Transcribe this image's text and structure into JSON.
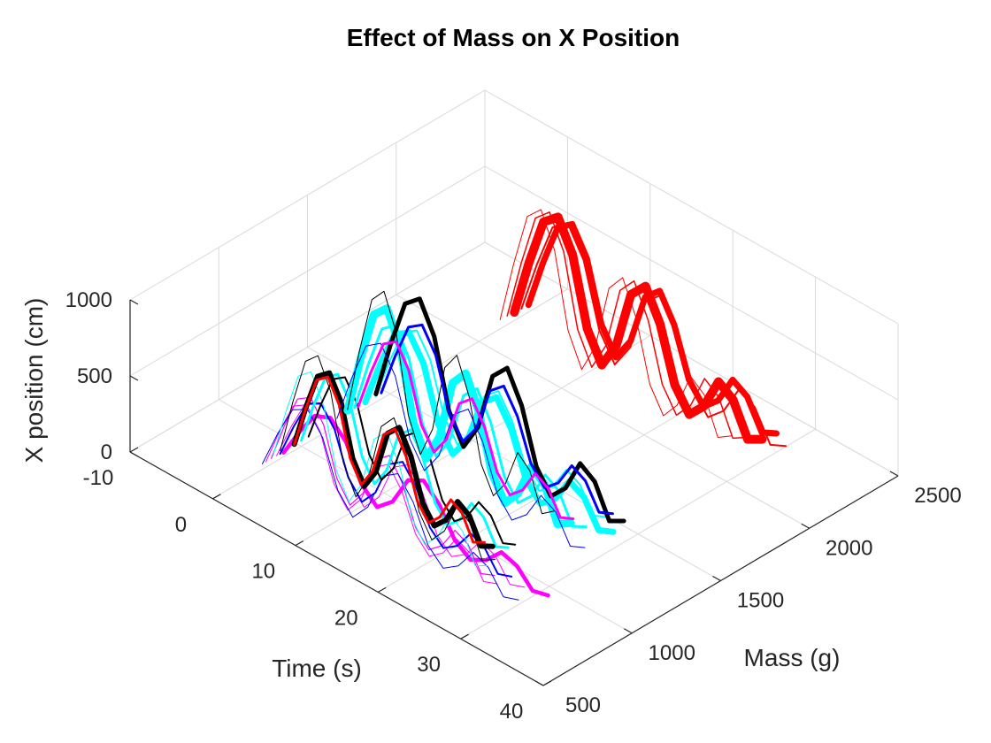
{
  "chart_data": {
    "type": "line",
    "projection": "3d",
    "title": "Effect of Mass  on  X Position",
    "xlabel": "Time (s)",
    "ylabel": "Mass (g)",
    "zlabel": "X position (cm)",
    "xlim": [
      -10,
      40
    ],
    "ylim": [
      500,
      2500
    ],
    "zlim": [
      0,
      1000
    ],
    "x_ticks": [
      "-10",
      "0",
      "10",
      "20",
      "30",
      "40"
    ],
    "y_ticks": [
      "500",
      "1000",
      "1500",
      "2000",
      "2500"
    ],
    "z_ticks": [
      "0",
      "500",
      "1000"
    ],
    "grid": true,
    "wave_shape": {
      "x": [
        0,
        2,
        4,
        6,
        8,
        10,
        12,
        14,
        16,
        18,
        20,
        22,
        24,
        26,
        28,
        30,
        32,
        34
      ],
      "z": [
        50,
        400,
        700,
        780,
        600,
        200,
        30,
        200,
        560,
        660,
        480,
        160,
        30,
        130,
        330,
        270,
        80,
        130
      ]
    },
    "series": [
      {
        "color": "#ff00ff",
        "mass": 800,
        "duration": 28,
        "width": 1.0,
        "amp": 0.72
      },
      {
        "color": "#ff00ff",
        "mass": 830,
        "duration": 27,
        "width": 1.2,
        "amp": 0.75
      },
      {
        "color": "#ff00ff",
        "mass": 860,
        "duration": 30,
        "width": 1.0,
        "amp": 0.7
      },
      {
        "color": "#ff00ff",
        "mass": 900,
        "duration": 32,
        "width": 4.5,
        "amp": 0.55
      },
      {
        "color": "#0000ff",
        "mass": 780,
        "duration": 31,
        "width": 1.0,
        "amp": 0.72
      },
      {
        "color": "#0000ff",
        "mass": 880,
        "duration": 28,
        "width": 2.0,
        "amp": 0.66
      },
      {
        "color": "#00ffff",
        "mass": 840,
        "duration": 26,
        "width": 1.0,
        "amp": 0.95
      },
      {
        "color": "#00ffff",
        "mass": 1000,
        "duration": 25,
        "width": 3.0,
        "amp": 0.78
      },
      {
        "color": "#000000",
        "mass": 880,
        "duration": 26,
        "width": 1.0,
        "amp": 1.05
      },
      {
        "color": "#000000",
        "mass": 960,
        "duration": 24,
        "width": 6.0,
        "amp": 0.82
      },
      {
        "color": "#000000",
        "mass": 1040,
        "duration": 25,
        "width": 2.0,
        "amp": 0.72
      },
      {
        "color": "#ff0000",
        "mass": 960,
        "duration": 23,
        "width": 3.0,
        "amp": 0.78
      },
      {
        "color": "#00ffff",
        "mass": 1260,
        "duration": 27,
        "width": 9.0,
        "amp": 1.12
      },
      {
        "color": "#00ffff",
        "mass": 1300,
        "duration": 28,
        "width": 3.0,
        "amp": 0.95
      },
      {
        "color": "#00ffff",
        "mass": 1360,
        "duration": 30,
        "width": 7.0,
        "amp": 0.85
      },
      {
        "color": "#00ffff",
        "mass": 1420,
        "duration": 28,
        "width": 2.0,
        "amp": 0.8
      },
      {
        "color": "#000000",
        "mass": 1260,
        "duration": 25,
        "width": 1.0,
        "amp": 1.25
      },
      {
        "color": "#000000",
        "mass": 1420,
        "duration": 30,
        "width": 5.0,
        "amp": 1.08
      },
      {
        "color": "#0000ff",
        "mass": 1200,
        "duration": 30,
        "width": 1.0,
        "amp": 0.9
      },
      {
        "color": "#0000ff",
        "mass": 1450,
        "duration": 28,
        "width": 3.0,
        "amp": 0.82
      },
      {
        "color": "#ff00ff",
        "mass": 1320,
        "duration": 26,
        "width": 3.0,
        "amp": 0.78
      },
      {
        "color": "#ff0000",
        "mass": 2120,
        "duration": 28,
        "width": 1.0,
        "amp": 1.2
      },
      {
        "color": "#ff0000",
        "mass": 2160,
        "duration": 29,
        "width": 1.5,
        "amp": 1.15
      },
      {
        "color": "#ff0000",
        "mass": 2200,
        "duration": 30,
        "width": 10.0,
        "amp": 1.08
      },
      {
        "color": "#ff0000",
        "mass": 2240,
        "duration": 32,
        "width": 2.0,
        "amp": 1.0
      },
      {
        "color": "#ff0000",
        "mass": 2280,
        "duration": 30,
        "width": 7.0,
        "amp": 0.95
      }
    ]
  }
}
